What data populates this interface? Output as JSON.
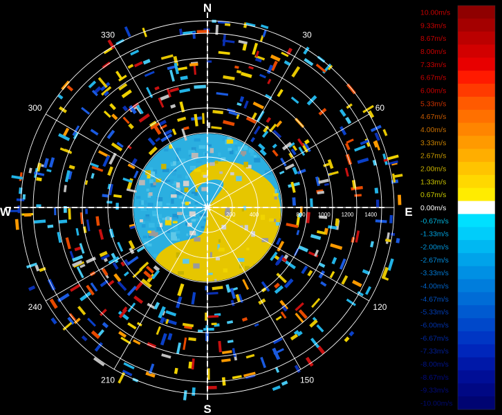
{
  "chart_data": {
    "type": "heatmap",
    "subtype": "polar-ppi-radial-velocity",
    "compass": {
      "north": "N",
      "east": "E",
      "south": "S",
      "west": "W"
    },
    "azimuth_labels": [
      "30",
      "60",
      "120",
      "150",
      "210",
      "240",
      "300",
      "330"
    ],
    "azimuth_label_angles": [
      30,
      60,
      120,
      150,
      210,
      240,
      300,
      330
    ],
    "spoke_angles": [
      0,
      30,
      60,
      90,
      120,
      150,
      180,
      210,
      240,
      270,
      300,
      330
    ],
    "range_labels": [
      "200",
      "400",
      "800",
      "1000",
      "1200",
      "1400"
    ],
    "range_label_values": [
      200,
      400,
      800,
      1000,
      1200,
      1400
    ],
    "range_max": 1600,
    "velocity_scale": {
      "unit": "m/s",
      "labels": [
        "10.00m/s",
        "9.33m/s",
        "8.67m/s",
        "8.00m/s",
        "7.33m/s",
        "6.67m/s",
        "6.00m/s",
        "5.33m/s",
        "4.67m/s",
        "4.00m/s",
        "3.33m/s",
        "2.67m/s",
        "2.00m/s",
        "1.33m/s",
        "0.67m/s",
        "0.00m/s",
        "-0.67m/s",
        "-1.33m/s",
        "-2.00m/s",
        "-2.67m/s",
        "-3.33m/s",
        "-4.00m/s",
        "-4.67m/s",
        "-5.33m/s",
        "-6.00m/s",
        "-6.67m/s",
        "-7.33m/s",
        "-8.00m/s",
        "-8.67m/s",
        "-9.33m/s",
        "-10.00m/s"
      ],
      "colors": [
        "#8f0000",
        "#a40000",
        "#bb0000",
        "#d20000",
        "#e80000",
        "#ff1a00",
        "#ff3a00",
        "#ff5a00",
        "#ff7000",
        "#ff8500",
        "#ff9a00",
        "#ffae00",
        "#ffc400",
        "#ffd800",
        "#ffec00",
        "#ffffff",
        "#00e0ff",
        "#00cdfa",
        "#00b8f2",
        "#00a3ea",
        "#0090e4",
        "#007ddc",
        "#006cd6",
        "#005ad0",
        "#0048ca",
        "#0036c4",
        "#0026bb",
        "#0018a8",
        "#000e96",
        "#000884",
        "#000472"
      ],
      "text_colors": [
        "#c80000",
        "#c80000",
        "#c80000",
        "#c80000",
        "#c80000",
        "#c80000",
        "#c80000",
        "#c83200",
        "#c85a00",
        "#c86e00",
        "#c88200",
        "#c89a00",
        "#c8b000",
        "#c8c000",
        "#c8c800",
        "#ffffff",
        "#00b4dc",
        "#00a0dc",
        "#0096dc",
        "#008cdc",
        "#0078d2",
        "#0064c8",
        "#0050be",
        "#003cb4",
        "#0032aa",
        "#0028a0",
        "#001e96",
        "#00148c",
        "#000a82",
        "#000a78",
        "#000a6e"
      ]
    },
    "inner_field": {
      "radius_range": [
        0,
        400
      ],
      "description_colors": [
        "#22a8de",
        "#e6c800"
      ]
    }
  }
}
